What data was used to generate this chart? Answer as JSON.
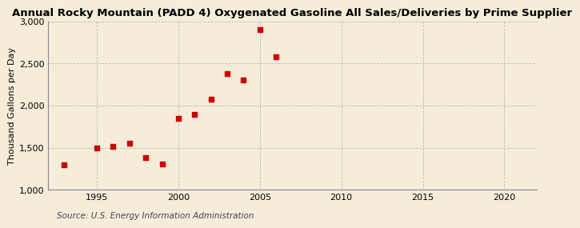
{
  "title": "Annual Rocky Mountain (PADD 4) Oxygenated Gasoline All Sales/Deliveries by Prime Supplier",
  "ylabel": "Thousand Gallons per Day",
  "source": "Source: U.S. Energy Information Administration",
  "background_color": "#f5edda",
  "plot_bg_color": "#f5edda",
  "marker_color": "#cc0000",
  "x_data": [
    1993,
    1995,
    1996,
    1997,
    1998,
    1999,
    2000,
    2001,
    2002,
    2003,
    2004,
    2005,
    2006
  ],
  "y_data": [
    1300,
    1500,
    1520,
    1550,
    1380,
    1305,
    1850,
    1900,
    2080,
    2380,
    2300,
    2900,
    2580
  ],
  "xlim": [
    1992,
    2022
  ],
  "ylim": [
    1000,
    3000
  ],
  "xticks": [
    1995,
    2000,
    2005,
    2010,
    2015,
    2020
  ],
  "yticks": [
    1000,
    1500,
    2000,
    2500,
    3000
  ],
  "ytick_labels": [
    "1,000",
    "1,500",
    "2,000",
    "2,500",
    "3,000"
  ],
  "title_fontsize": 9.5,
  "tick_fontsize": 8,
  "ylabel_fontsize": 8,
  "source_fontsize": 7.5,
  "grid_color": "#bbbbbb",
  "spine_color": "#888888"
}
